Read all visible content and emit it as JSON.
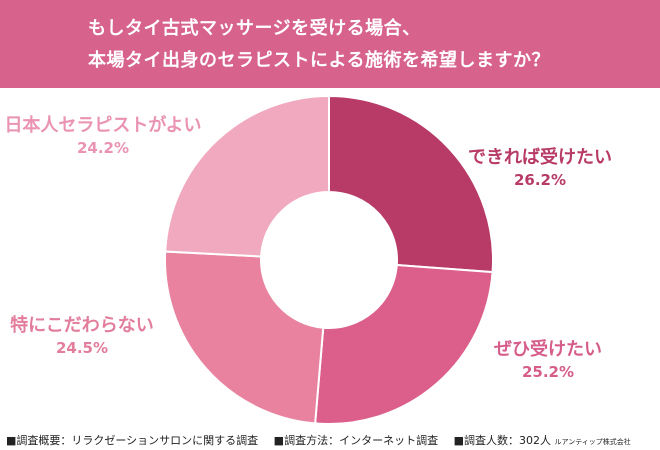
{
  "header": {
    "title_line1": "もしタイ古式マッサージを受ける場合、",
    "title_line2": "本場タイ出身のセラピストによる施術を希望しますか？"
  },
  "chart_data": {
    "type": "pie",
    "categories": [
      "できれば受けたい",
      "ぜひ受けたい",
      "特にこだわらない",
      "日本人セラピストがよい"
    ],
    "values": [
      26.2,
      25.2,
      24.5,
      24.2
    ],
    "labels": [
      "26.2%",
      "25.2%",
      "24.5%",
      "24.2%"
    ],
    "colors": [
      "#b73a67",
      "#db5f8a",
      "#e8829f",
      "#f1a9c0"
    ],
    "label_colors": [
      "#b73a67",
      "#d65d8a",
      "#e27d9c",
      "#ea93b3"
    ],
    "donut": true,
    "start": "top"
  },
  "footer": {
    "survey_summary": "■調査概要：リラクゼーションサロンに関する調査",
    "survey_method": "■調査方法：インターネット調査",
    "survey_count": "■調査人数：302人",
    "company": "ルアンティップ株式会社"
  }
}
